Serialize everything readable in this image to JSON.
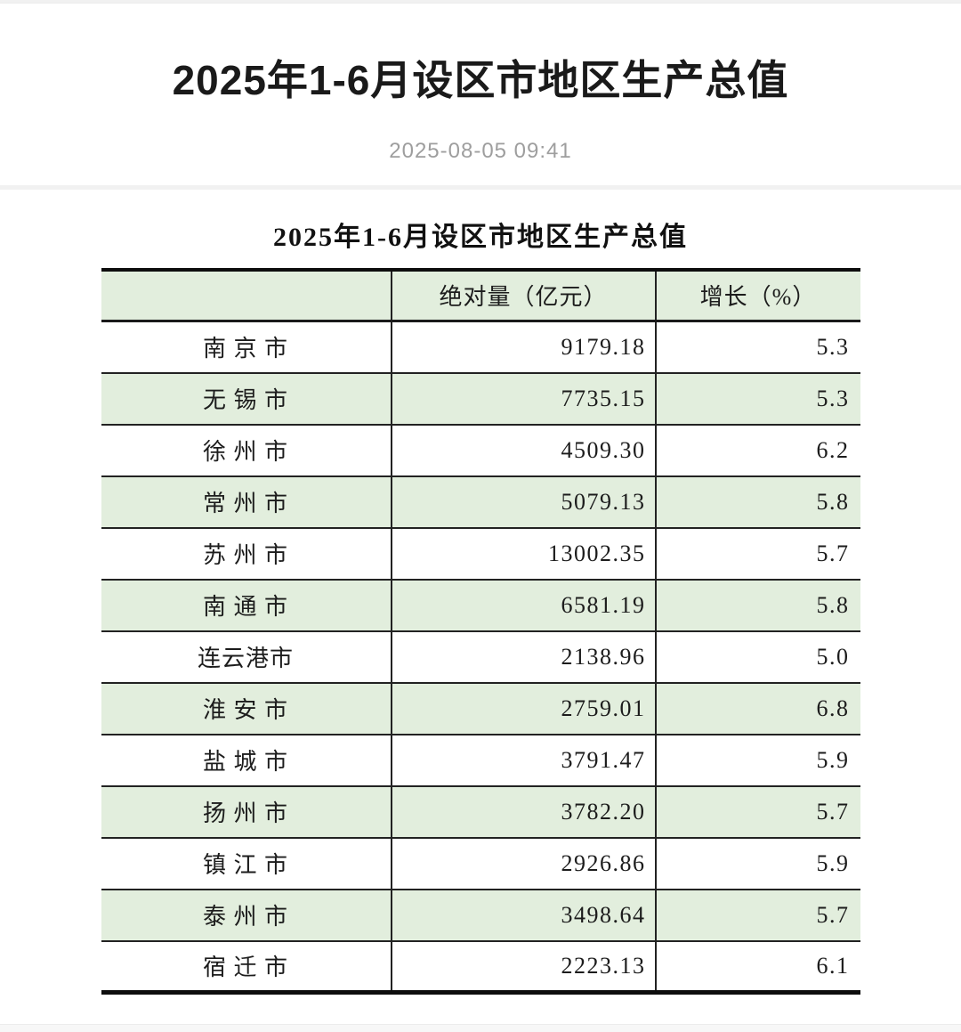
{
  "article": {
    "title": "2025年1-6月设区市地区生产总值",
    "published_at": "2025-08-05 09:41"
  },
  "table": {
    "caption": "2025年1-6月设区市地区生产总值",
    "columns": {
      "city": "",
      "value": "绝对量（亿元）",
      "growth": "增长（%）"
    },
    "rows": [
      {
        "city": "南 京 市",
        "value": "9179.18",
        "growth": "5.3"
      },
      {
        "city": "无 锡 市",
        "value": "7735.15",
        "growth": "5.3"
      },
      {
        "city": "徐 州 市",
        "value": "4509.30",
        "growth": "6.2"
      },
      {
        "city": "常 州 市",
        "value": "5079.13",
        "growth": "5.8"
      },
      {
        "city": "苏 州 市",
        "value": "13002.35",
        "growth": "5.7"
      },
      {
        "city": "南 通 市",
        "value": "6581.19",
        "growth": "5.8"
      },
      {
        "city": "连云港市",
        "value": "2138.96",
        "growth": "5.0"
      },
      {
        "city": "淮 安 市",
        "value": "2759.01",
        "growth": "6.8"
      },
      {
        "city": "盐 城 市",
        "value": "3791.47",
        "growth": "5.9"
      },
      {
        "city": "扬 州 市",
        "value": "3782.20",
        "growth": "5.7"
      },
      {
        "city": "镇 江 市",
        "value": "2926.86",
        "growth": "5.9"
      },
      {
        "city": "泰 州 市",
        "value": "3498.64",
        "growth": "5.7"
      },
      {
        "city": "宿 迁 市",
        "value": "2223.13",
        "growth": "6.1"
      }
    ]
  },
  "colors": {
    "row_highlight": "#e2eedd",
    "table_border": "#1a1a1a",
    "heading_text": "#1a1a1a",
    "date_text": "#9e9e9e",
    "divider": "#f1f1f1"
  }
}
